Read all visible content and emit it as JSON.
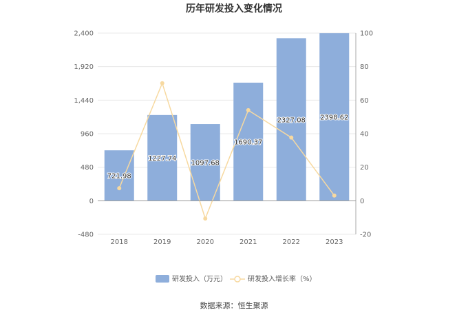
{
  "chart_data": {
    "type": "bar+line",
    "title": "历年研发投入变化情况",
    "categories": [
      "2018",
      "2019",
      "2020",
      "2021",
      "2022",
      "2023"
    ],
    "series": [
      {
        "name": "研发投入（万元）",
        "type": "bar",
        "axis": "left",
        "color": "#8eaedb",
        "values": [
          721.98,
          1227.74,
          1097.68,
          1690.37,
          2327.08,
          2398.62
        ],
        "labels": [
          "721.98",
          "1227.74",
          "1097.68",
          "1690.37",
          "2327.08",
          "2398.62"
        ]
      },
      {
        "name": "研发投入增长率（%）",
        "type": "line",
        "axis": "right",
        "color": "#f7d9a0",
        "values": [
          7.5,
          70.1,
          -10.6,
          54.0,
          37.7,
          3.1
        ]
      }
    ],
    "y_left": {
      "ticks": [
        "-480",
        "0",
        "480",
        "960",
        "1,440",
        "1,920",
        "2,400"
      ],
      "ylim": [
        -480,
        2400
      ]
    },
    "y_right": {
      "ticks": [
        "-20",
        "0",
        "20",
        "40",
        "60",
        "80",
        "100"
      ],
      "ylim": [
        -20,
        100
      ]
    },
    "grid": true,
    "legend": "bottom"
  },
  "source": "数据来源：恒生聚源"
}
